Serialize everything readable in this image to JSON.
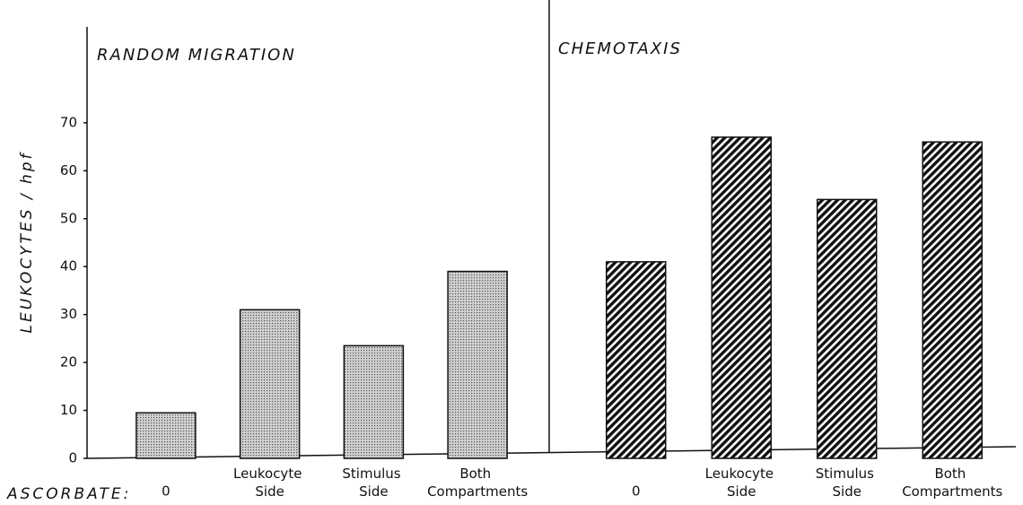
{
  "chart_data": [
    {
      "type": "bar",
      "title": "RANDOM MIGRATION",
      "y_label": "LEUKOCYTES / hpf",
      "x_label": "ASCORBATE:",
      "categories": [
        "0",
        "Leukocyte Side",
        "Stimulus Side",
        "Both Compartments"
      ],
      "values": [
        9.5,
        31,
        23.5,
        39
      ],
      "pattern": "dots",
      "ylim": [
        0,
        90
      ],
      "yticks": [
        0,
        10,
        20,
        30,
        40,
        50,
        60,
        70
      ]
    },
    {
      "type": "bar",
      "title": "CHEMOTAXIS",
      "categories": [
        "0",
        "Leukocyte Side",
        "Stimulus Side",
        "Both Compartments"
      ],
      "values": [
        41,
        67,
        54,
        66
      ],
      "pattern": "hatch",
      "ylim": [
        0,
        90
      ]
    }
  ]
}
